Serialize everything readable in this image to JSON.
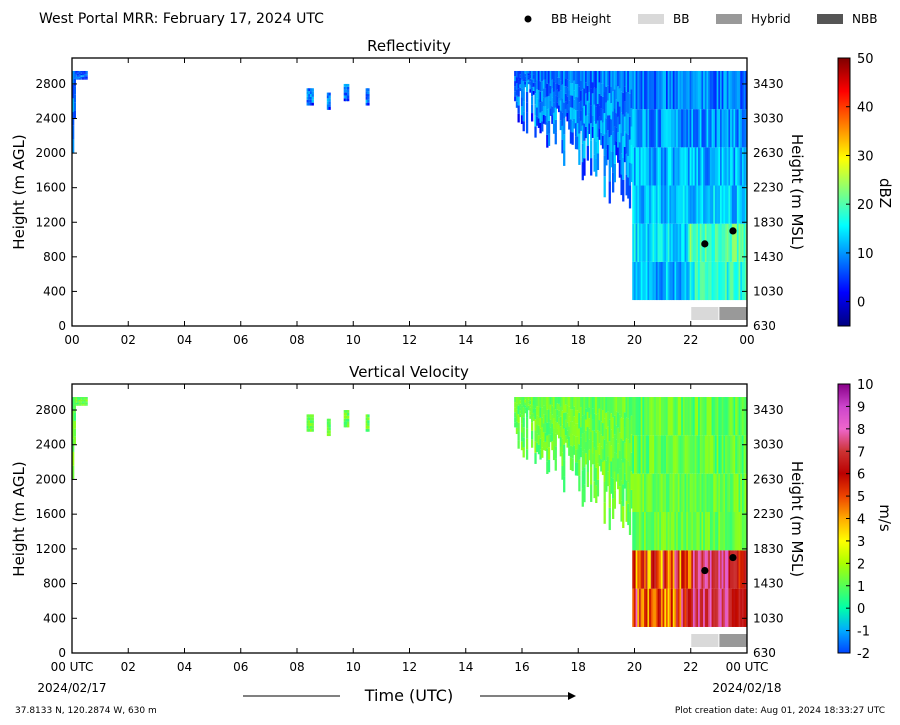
{
  "header": {
    "title": "West Portal MRR:  February 17, 2024 UTC",
    "legend": [
      {
        "label": "BB Height",
        "kind": "dot",
        "color": "#000000"
      },
      {
        "label": "BB",
        "kind": "box",
        "color": "#d9d9d9"
      },
      {
        "label": "Hybrid",
        "kind": "box",
        "color": "#999999"
      },
      {
        "label": "NBB",
        "kind": "box",
        "color": "#555555"
      }
    ]
  },
  "footer": {
    "location": "37.8133 N, 120.2874 W, 630 m",
    "creation": "Plot creation date: Aug 01, 2024 18:33:27 UTC",
    "xlabel": "Time (UTC)",
    "start_date": "2024/02/17",
    "end_date": "2024/02/18"
  },
  "chart_data": [
    {
      "type": "heatmap",
      "title": "Reflectivity",
      "ylabel": "Height (m AGL)",
      "ylabel_right": "Height (m MSL)",
      "colorbar_label": "dBZ",
      "x_ticks": [
        "00",
        "02",
        "04",
        "06",
        "08",
        "10",
        "12",
        "14",
        "16",
        "18",
        "20",
        "22",
        "00"
      ],
      "y_ticks": [
        0,
        400,
        800,
        1200,
        1600,
        2000,
        2400,
        2800
      ],
      "y_ticks_right": [
        630,
        1030,
        1430,
        1830,
        2230,
        2630,
        3030,
        3430
      ],
      "xlim": [
        0,
        24
      ],
      "ylim": [
        0,
        3100
      ],
      "colorbar": {
        "min": -5,
        "max": 50,
        "ticks": [
          0,
          10,
          20,
          30,
          40,
          50
        ],
        "colors": [
          "#00007f",
          "#0000ff",
          "#007fff",
          "#00ffff",
          "#7fff7f",
          "#ffff00",
          "#ff7f00",
          "#ff0000",
          "#7f0000"
        ]
      },
      "bb_height": [
        {
          "time": 22.5,
          "height": 950
        },
        {
          "time": 23.5,
          "height": 1100
        }
      ],
      "bb_class": [
        {
          "start": 22.0,
          "end": 23.0,
          "class": "BB"
        },
        {
          "start": 23.0,
          "end": 24.0,
          "class": "Hybrid"
        }
      ]
    },
    {
      "type": "heatmap",
      "title": "Vertical Velocity",
      "ylabel": "Height (m AGL)",
      "ylabel_right": "Height (m MSL)",
      "colorbar_label": "m/s",
      "x_ticks": [
        "00 UTC",
        "02",
        "04",
        "06",
        "08",
        "10",
        "12",
        "14",
        "16",
        "18",
        "20",
        "22",
        "00 UTC"
      ],
      "y_ticks": [
        0,
        400,
        800,
        1200,
        1600,
        2000,
        2400,
        2800
      ],
      "y_ticks_right": [
        630,
        1030,
        1430,
        1830,
        2230,
        2630,
        3030,
        3430
      ],
      "xlim": [
        0,
        24
      ],
      "ylim": [
        0,
        3100
      ],
      "colorbar": {
        "min": -2,
        "max": 10,
        "ticks": [
          -2,
          -1,
          0,
          1,
          2,
          3,
          4,
          5,
          6,
          7,
          8,
          9,
          10
        ],
        "colors": [
          "#0044ff",
          "#00aaff",
          "#00ffaa",
          "#55ff55",
          "#aaff00",
          "#ffff00",
          "#ffaa00",
          "#ee4400",
          "#bb0000",
          "#cc3333",
          "#ee66cc",
          "#cc44cc",
          "#880088"
        ]
      },
      "bb_height": [
        {
          "time": 22.5,
          "height": 950
        },
        {
          "time": 23.5,
          "height": 1100
        }
      ],
      "bb_class": [
        {
          "start": 22.0,
          "end": 23.0,
          "class": "BB"
        },
        {
          "start": 23.0,
          "end": 24.0,
          "class": "Hybrid"
        }
      ]
    }
  ]
}
